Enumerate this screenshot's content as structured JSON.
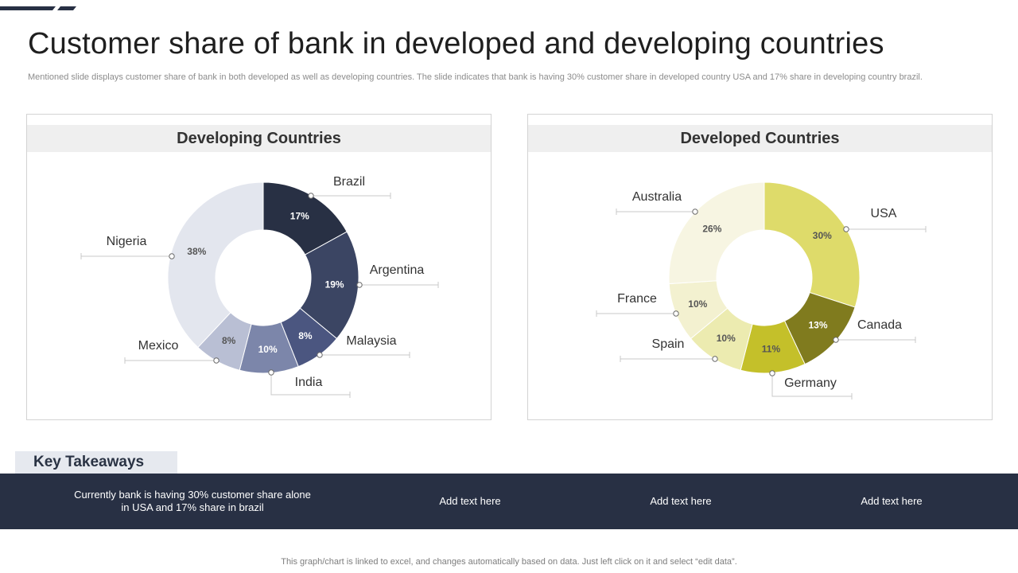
{
  "page": {
    "title": "Customer share of bank in developed and developing countries",
    "subtitle": "Mentioned slide displays customer share of bank in both developed as well as developing countries. The slide indicates that bank is having 30% customer share in developed country USA and 17% share in developing country brazil.",
    "footer": "This graph/chart is linked to excel, and changes automatically based on data. Just left click on it and select “edit data”.",
    "accent_color": "#283044"
  },
  "takeaways": {
    "heading": "Key Takeaways",
    "items": [
      "Currently  bank is having  30% customer share alone in USA and 17% share in brazil",
      "Add text here",
      "Add text here",
      "Add text here"
    ]
  },
  "chart_data": [
    {
      "type": "pie",
      "donut": true,
      "title": "Developing Countries",
      "categories": [
        "Brazil",
        "Argentina",
        "Malaysia",
        "India",
        "Mexico",
        "Nigeria"
      ],
      "values": [
        17,
        19,
        8,
        10,
        8,
        38
      ],
      "value_labels": [
        "17%",
        "19%",
        "8%",
        "10%",
        "8%",
        "38%"
      ],
      "colors": [
        "#283044",
        "#3b4563",
        "#4b5680",
        "#7c86aa",
        "#b9bfd4",
        "#e3e6ee"
      ],
      "label_colors": [
        "#ffffff",
        "#ffffff",
        "#ffffff",
        "#ffffff",
        "#555555",
        "#555555"
      ],
      "start": "12 o'clock, clockwise"
    },
    {
      "type": "pie",
      "donut": true,
      "title": "Developed Countries",
      "categories": [
        "USA",
        "Canada",
        "Germany",
        "Spain",
        "France",
        "Australia"
      ],
      "values": [
        30,
        13,
        11,
        10,
        10,
        26
      ],
      "value_labels": [
        "30%",
        "13%",
        "11%",
        "10%",
        "10%",
        "26%"
      ],
      "colors": [
        "#dedb6a",
        "#807b1e",
        "#c4c02a",
        "#ecebb0",
        "#f3f1d0",
        "#f7f5e2"
      ],
      "label_colors": [
        "#555555",
        "#ffffff",
        "#555555",
        "#555555",
        "#555555",
        "#555555"
      ],
      "start": "12 o'clock, clockwise"
    }
  ]
}
